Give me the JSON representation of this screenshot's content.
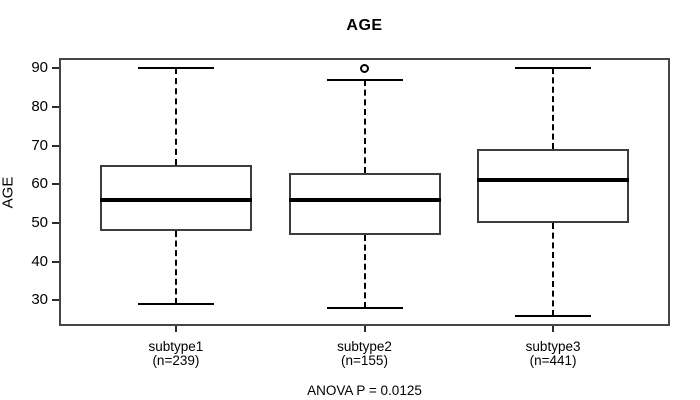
{
  "chart_data": {
    "type": "boxplot",
    "title": "AGE",
    "ylabel": "AGE",
    "xlabel": "",
    "footnote": "ANOVA P = 0.0125",
    "ylim": [
      23.4,
      92.6
    ],
    "yticks": [
      30,
      40,
      50,
      60,
      70,
      80,
      90
    ],
    "grid": false,
    "groups": [
      {
        "label": "subtype1",
        "sublabel": "(n=239)",
        "n": 239,
        "whisker_low": 29,
        "q1": 48,
        "median": 56,
        "q3": 65,
        "whisker_high": 90,
        "outliers": []
      },
      {
        "label": "subtype2",
        "sublabel": "(n=155)",
        "n": 155,
        "whisker_low": 28,
        "q1": 47,
        "median": 56,
        "q3": 63,
        "whisker_high": 87,
        "outliers": [
          90
        ]
      },
      {
        "label": "subtype3",
        "sublabel": "(n=441)",
        "n": 441,
        "whisker_low": 26,
        "q1": 50,
        "median": 61,
        "q3": 69,
        "whisker_high": 90,
        "outliers": []
      }
    ],
    "colors": {
      "background": "#ffffff",
      "frame": "#454545",
      "box_border": "#3d3d3d",
      "median": "#000000",
      "whisker": "#000000",
      "text": "#000000"
    }
  }
}
